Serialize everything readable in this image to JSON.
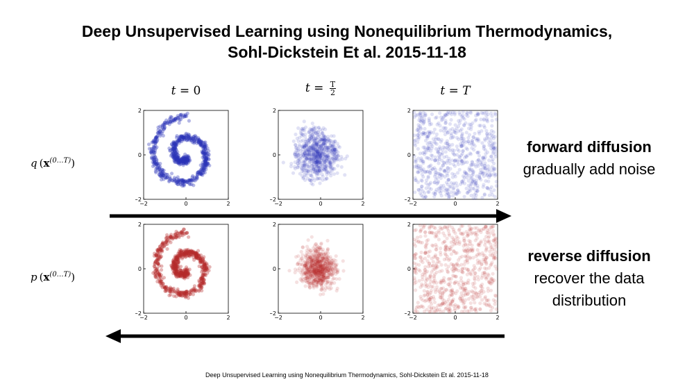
{
  "title": {
    "line1": "Deep Unsupervised Learning using  Nonequilibrium Thermodynamics,",
    "line2": "Sohl-Dickstein Et al. 2015-11-18"
  },
  "columns": [
    {
      "var": "t",
      "eq": " = ",
      "val": "0"
    },
    {
      "var": "t",
      "eq": " = ",
      "num": "T",
      "den": "2"
    },
    {
      "var": "t",
      "eq": " = ",
      "val": "T"
    }
  ],
  "rows": [
    {
      "func": "q",
      "vec": "x",
      "sup": "(0…T)"
    },
    {
      "func": "p",
      "vec": "x",
      "sup": "(0…T)"
    }
  ],
  "descriptions": {
    "forward": {
      "title": "forward diffusion",
      "line1": "gradually add noise"
    },
    "reverse": {
      "title": "reverse diffusion",
      "line1": "recover the data",
      "line2": "distribution"
    }
  },
  "axes": {
    "x_ticks": [
      "−2",
      "0",
      "2"
    ],
    "y_ticks": [
      "2",
      "0",
      "−2"
    ]
  },
  "footer": "Deep Unsupervised Learning using  Nonequilibrium Thermodynamics, Sohl-Dickstein Et al. 2015-11-18",
  "colors": {
    "forward": "#2b33b8",
    "reverse": "#b52a2a",
    "arrow": "#000000"
  },
  "panels": [
    {
      "row": "forward",
      "spread": 0.06,
      "noise": 0.0
    },
    {
      "row": "forward",
      "spread": 0.35,
      "noise": 0.35
    },
    {
      "row": "forward",
      "spread": 1.0,
      "noise": 1.0
    },
    {
      "row": "reverse",
      "spread": 0.06,
      "noise": 0.08
    },
    {
      "row": "reverse",
      "spread": 0.38,
      "noise": 0.55
    },
    {
      "row": "reverse",
      "spread": 1.0,
      "noise": 1.0
    }
  ]
}
